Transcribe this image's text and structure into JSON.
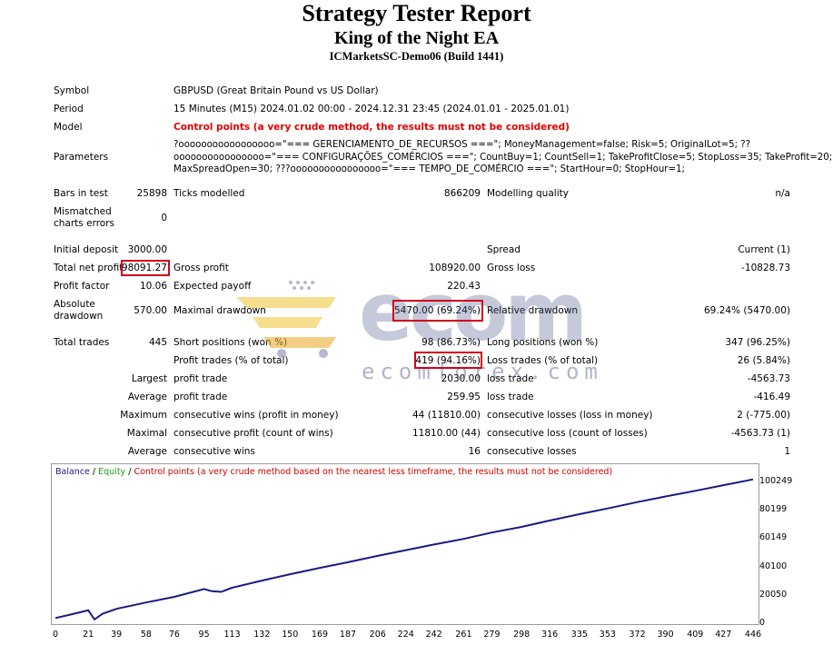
{
  "report": {
    "title": "Strategy Tester Report",
    "ea_name": "King of the Night EA",
    "server": "ICMarketsSC-Demo06 (Build 1441)"
  },
  "settings": {
    "symbol_label": "Symbol",
    "symbol_value": "GBPUSD (Great Britain Pound vs US Dollar)",
    "period_label": "Period",
    "period_value": "15 Minutes (M15) 2024.01.02 00:00 - 2024.12.31 23:45 (2024.01.01 - 2025.01.01)",
    "model_label": "Model",
    "model_value": "Control points (a very crude method, the results must not be considered)",
    "parameters_label": "Parameters",
    "parameters_lines": [
      "?ooooooooooooooooo=\"=== GERENCIAMENTO_DE_RECURSOS ===\"; MoneyManagement=false; Risk=5; OriginalLot=5; ??",
      "oooooooooooooooo=\"=== CONFIGURAÇÕES_COMÉRCIOS ===\"; CountBuy=1; CountSell=1; TakeProfitClose=5; StopLoss=35; TakeProfit=20;",
      "MaxSpreadOpen=30; ???oooooooooooooooo=\"=== TEMPO_DE_COMÉRCIO ===\"; StartHour=0; StopHour=1;"
    ]
  },
  "stats": {
    "bars_in_test_label": "Bars in test",
    "bars_in_test": "25898",
    "ticks_modelled_label": "Ticks modelled",
    "ticks_modelled": "866209",
    "modelling_quality_label": "Modelling quality",
    "modelling_quality": "n/a",
    "mismatched_label_1": "Mismatched",
    "mismatched_label_2": "charts errors",
    "mismatched": "0",
    "initial_deposit_label": "Initial deposit",
    "initial_deposit": "3000.00",
    "spread_label": "Spread",
    "spread": "Current (1)",
    "total_net_profit_label": "Total net profit",
    "total_net_profit": "98091.27",
    "gross_profit_label": "Gross profit",
    "gross_profit": "108920.00",
    "gross_loss_label": "Gross loss",
    "gross_loss": "-10828.73",
    "profit_factor_label": "Profit factor",
    "profit_factor": "10.06",
    "expected_payoff_label": "Expected payoff",
    "expected_payoff": "220.43",
    "absolute_label_1": "Absolute",
    "absolute_label_2": "drawdown",
    "absolute_drawdown": "570.00",
    "maximal_drawdown_label": "Maximal drawdown",
    "maximal_drawdown": "5470.00 (69.24%)",
    "relative_drawdown_label": "Relative drawdown",
    "relative_drawdown": "69.24% (5470.00)",
    "total_trades_label": "Total trades",
    "total_trades": "445",
    "short_positions_label": "Short positions (won %)",
    "short_positions": "98 (86.73%)",
    "long_positions_label": "Long positions (won %)",
    "long_positions": "347 (96.25%)",
    "profit_trades_label": "Profit trades (% of total)",
    "profit_trades": "419 (94.16%)",
    "loss_trades_label": "Loss trades (% of total)",
    "loss_trades": "26 (5.84%)",
    "largest_label": "Largest",
    "largest_profit_label": "profit trade",
    "largest_profit": "2030.00",
    "largest_loss_label": "loss trade",
    "largest_loss": "-4563.73",
    "average_label": "Average",
    "average_profit_label": "profit trade",
    "average_profit": "259.95",
    "average_loss_label": "loss trade",
    "average_loss": "-416.49",
    "maximum_label": "Maximum",
    "max_cons_wins_label": "consecutive wins (profit in money)",
    "max_cons_wins": "44 (11810.00)",
    "max_cons_losses_label": "consecutive losses (loss in money)",
    "max_cons_losses": "2 (-775.00)",
    "maximal_label": "Maximal",
    "maximal_cons_profit_label": "consecutive profit (count of wins)",
    "maximal_cons_profit": "11810.00 (44)",
    "maximal_cons_loss_label": "consecutive loss (count of losses)",
    "maximal_cons_loss": "-4563.73 (1)",
    "average2_label": "Average",
    "avg_cons_wins_label": "consecutive wins",
    "avg_cons_wins": "16",
    "avg_cons_losses_label": "consecutive losses",
    "avg_cons_losses": "1"
  },
  "watermark": {
    "main": "ecom",
    "sub": "ecomforex.com"
  },
  "chart_legend": {
    "balance": "Balance",
    "sep": " / ",
    "equity": "Equity",
    "sep2": " / ",
    "control": "Control points (a very crude method based on the nearest less timeframe, the results must not be considered)"
  },
  "colors": {
    "balance": "#1a1a80",
    "equity": "#1e9a1e",
    "warning": "#e00000",
    "highlight_box": "#d0021b"
  },
  "chart_data": {
    "type": "line",
    "title": "",
    "xlabel": "",
    "ylabel": "",
    "x_ticks": [
      "0",
      "21",
      "39",
      "58",
      "76",
      "95",
      "113",
      "132",
      "150",
      "169",
      "187",
      "206",
      "224",
      "242",
      "261",
      "279",
      "298",
      "316",
      "335",
      "353",
      "372",
      "390",
      "409",
      "427",
      "446"
    ],
    "y_ticks": [
      "100249",
      "80199",
      "60149",
      "40100",
      "20050",
      "0"
    ],
    "xlim": [
      0,
      446
    ],
    "ylim": [
      0,
      100249
    ],
    "series": [
      {
        "name": "Balance",
        "x": [
          0,
          10,
          21,
          25,
          30,
          39,
          58,
          76,
          95,
          100,
          106,
          113,
          132,
          150,
          169,
          187,
          206,
          224,
          242,
          261,
          279,
          298,
          316,
          335,
          353,
          372,
          390,
          409,
          427,
          446
        ],
        "y": [
          3000,
          5500,
          8500,
          2000,
          6000,
          9500,
          14000,
          18000,
          23500,
          22000,
          21500,
          24500,
          29500,
          34000,
          38500,
          42500,
          47000,
          51000,
          55000,
          59000,
          63500,
          67500,
          72000,
          76500,
          80500,
          85000,
          89000,
          93000,
          97000,
          101091
        ]
      }
    ]
  }
}
